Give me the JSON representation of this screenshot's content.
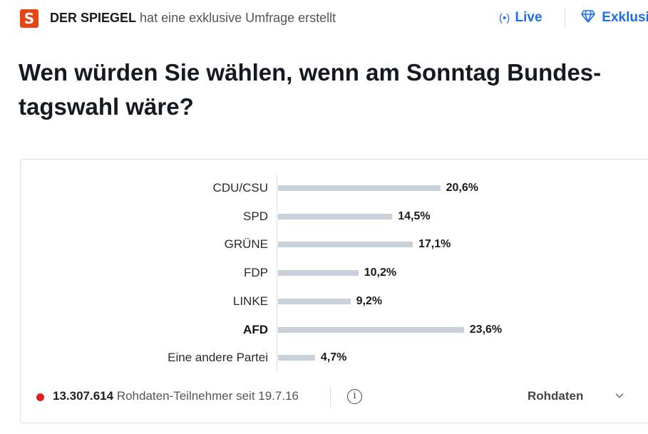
{
  "header": {
    "logo_letter": "S",
    "publisher_name": "DER SPIEGEL",
    "publisher_suffix": "hat eine exklusive Umfrage erstellt",
    "live_label": "Live",
    "exclusive_label": "Exklusi"
  },
  "title": "Wen würden Sie wählen, wenn am Sonntag Bundes­tagswahl wäre?",
  "chart_data": {
    "type": "bar",
    "orientation": "horizontal",
    "categories": [
      "CDU/CSU",
      "SPD",
      "GRÜNE",
      "FDP",
      "LINKE",
      "AFD",
      "Eine andere Partei"
    ],
    "values": [
      20.6,
      14.5,
      17.1,
      10.2,
      9.2,
      23.6,
      4.7
    ],
    "value_labels": [
      "20,6%",
      "14,5%",
      "17,1%",
      "10,2%",
      "9,2%",
      "23,6%",
      "4,7%"
    ],
    "highlighted": "AFD",
    "unit": "%",
    "colors": {
      "bar": "#c8d1da"
    }
  },
  "footer": {
    "participant_count": "13.307.614",
    "participant_label": "Rohdaten-Teilnehmer seit 19.7.16",
    "info_symbol": "i",
    "rawdata_label": "Rohdaten"
  },
  "colors": {
    "accent": "#1e6ee8",
    "brand": "#e64415",
    "live_dot": "#e02020"
  }
}
